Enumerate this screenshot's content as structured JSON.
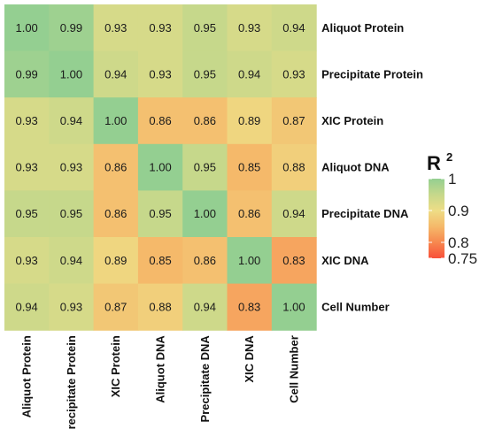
{
  "chart_data": {
    "type": "heatmap",
    "rows": [
      "Aliquot Protein",
      "Precipitate Protein",
      "XIC Protein",
      "Aliquot DNA",
      "Precipitate DNA",
      "XIC DNA",
      "Cell Number"
    ],
    "columns": [
      "Aliquot Protein",
      "Precipitate Protein",
      "XIC Protein",
      "Aliquot DNA",
      "Precipitate DNA",
      "XIC DNA",
      "Cell Number"
    ],
    "values": [
      [
        1.0,
        0.99,
        0.93,
        0.93,
        0.95,
        0.93,
        0.94
      ],
      [
        0.99,
        1.0,
        0.94,
        0.93,
        0.95,
        0.94,
        0.93
      ],
      [
        0.93,
        0.94,
        1.0,
        0.86,
        0.86,
        0.89,
        0.87
      ],
      [
        0.93,
        0.93,
        0.86,
        1.0,
        0.95,
        0.85,
        0.88
      ],
      [
        0.95,
        0.95,
        0.86,
        0.95,
        1.0,
        0.86,
        0.94
      ],
      [
        0.93,
        0.94,
        0.89,
        0.85,
        0.86,
        1.0,
        0.83
      ],
      [
        0.94,
        0.93,
        0.87,
        0.88,
        0.94,
        0.83,
        1.0
      ]
    ],
    "cell_labels": [
      [
        "1.00",
        "0.99",
        "0.93",
        "0.93",
        "0.95",
        "0.93",
        "0.94"
      ],
      [
        "0.99",
        "1.00",
        "0.94",
        "0.93",
        "0.95",
        "0.94",
        "0.93"
      ],
      [
        "0.93",
        "0.94",
        "1.00",
        "0.86",
        "0.86",
        "0.89",
        "0.87"
      ],
      [
        "0.93",
        "0.93",
        "0.86",
        "1.00",
        "0.95",
        "0.85",
        "0.88"
      ],
      [
        "0.95",
        "0.95",
        "0.86",
        "0.95",
        "1.00",
        "0.86",
        "0.94"
      ],
      [
        "0.93",
        "0.94",
        "0.89",
        "0.85",
        "0.86",
        "1.00",
        "0.83"
      ],
      [
        "0.94",
        "0.93",
        "0.87",
        "0.88",
        "0.94",
        "0.83",
        "1.00"
      ]
    ],
    "legend": {
      "title": "R",
      "title_superscript": "2",
      "placement": "right",
      "range": [
        0.75,
        1.0
      ],
      "ticks": [
        1.0,
        0.9,
        0.8,
        0.75
      ],
      "tick_labels": [
        "1",
        "0.9",
        "0.8",
        "0.75"
      ],
      "color_stops": [
        {
          "value": 0.75,
          "color": "#f8503a"
        },
        {
          "value": 0.8,
          "color": "#f7884f"
        },
        {
          "value": 0.85,
          "color": "#f5b96a"
        },
        {
          "value": 0.9,
          "color": "#eedd86"
        },
        {
          "value": 0.95,
          "color": "#c6d88b"
        },
        {
          "value": 1.0,
          "color": "#94cf91"
        }
      ]
    },
    "grid": false
  }
}
